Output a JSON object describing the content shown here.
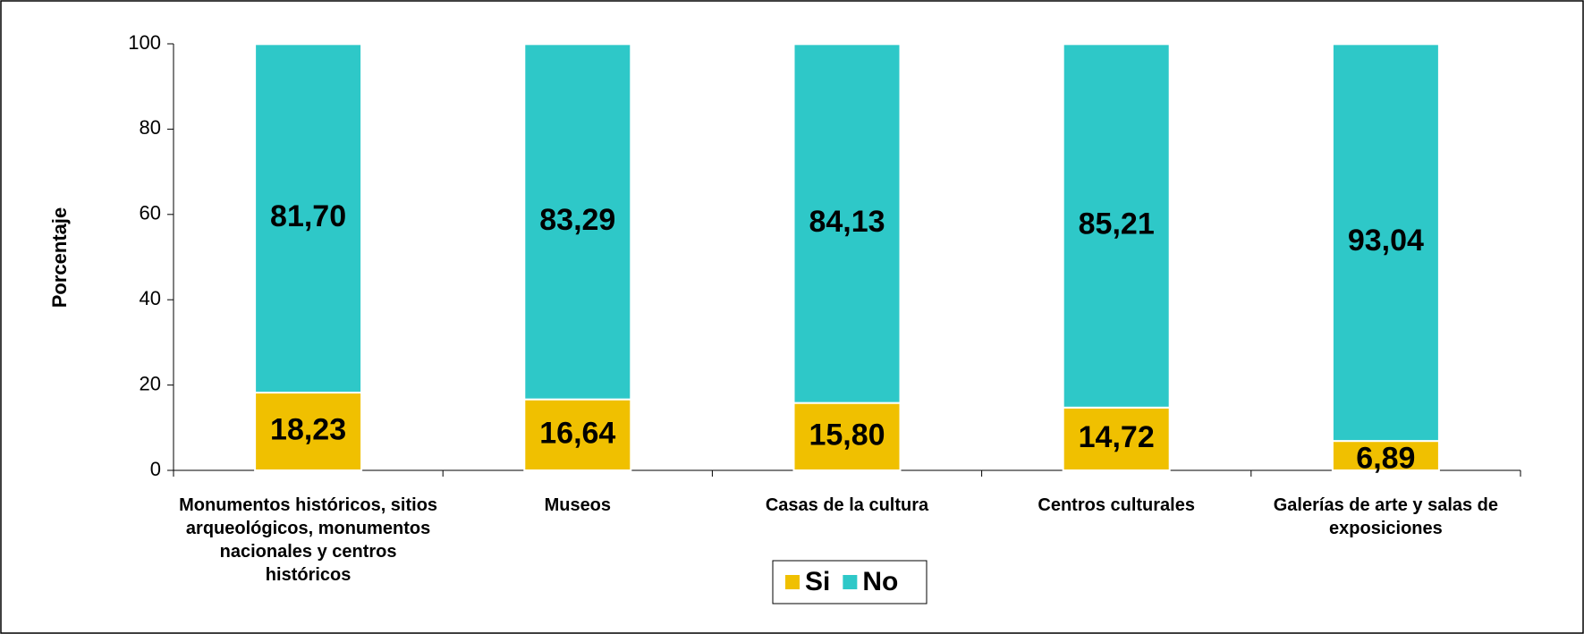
{
  "chart_data": {
    "type": "stacked_bar",
    "y_label": "Porcentaje",
    "categories": [
      "Monumentos históricos, sitios arqueológicos, monumentos nacionales y centros históricos",
      "Museos",
      "Casas de la cultura",
      "Centros culturales",
      "Galerías de arte y salas de exposiciones"
    ],
    "series": [
      {
        "name": "Si",
        "color": "#f0c000",
        "values": [
          18.23,
          16.64,
          15.8,
          14.72,
          6.89
        ],
        "value_labels": [
          "18,23",
          "16,64",
          "15,80",
          "14,72",
          "6,89"
        ]
      },
      {
        "name": "No",
        "color": "#2ec8c8",
        "values": [
          81.7,
          83.29,
          84.13,
          85.21,
          93.04
        ],
        "value_labels": [
          "81,70",
          "83,29",
          "84,13",
          "85,21",
          "93,04"
        ]
      }
    ],
    "ylim": [
      0,
      100
    ],
    "yticks": [
      0,
      20,
      40,
      60,
      80,
      100
    ],
    "legend": "bottom"
  }
}
